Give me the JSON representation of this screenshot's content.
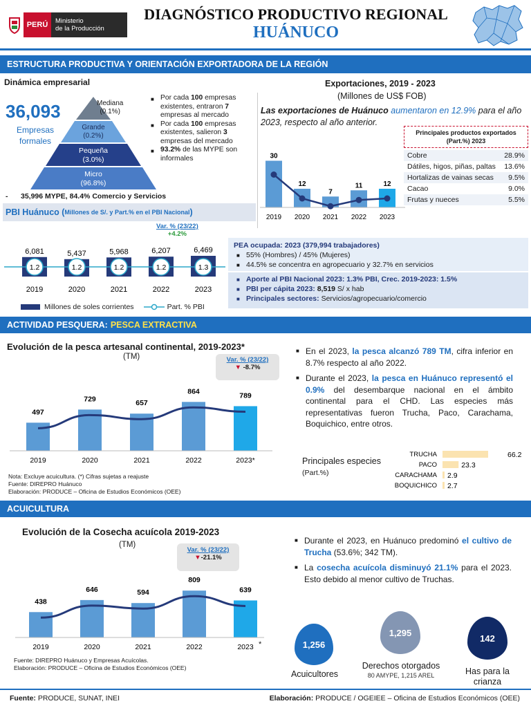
{
  "header": {
    "logo_country": "PERÚ",
    "logo_ministry_line1": "Ministerio",
    "logo_ministry_line2": "de la Producción",
    "title": "DIAGNÓSTICO PRODUCTIVO REGIONAL",
    "region": "HUÁNUCO"
  },
  "section1": {
    "band": "ESTRUCTURA PRODUCTIVA Y ORIENTACIÓN EXPORTADORA DE LA REGIÓN",
    "empresarial": {
      "heading": "Dinámica empresarial",
      "total": "36,093",
      "total_label_1": "Empresas",
      "total_label_2": "formales",
      "pyramid": [
        {
          "name": "Mediana",
          "pct": "(0.1%)"
        },
        {
          "name": "Grande",
          "pct": "(0.2%)"
        },
        {
          "name": "Pequeña",
          "pct": "(3.0%)"
        },
        {
          "name": "Micro",
          "pct": "(96.8%)"
        }
      ],
      "bullet1": {
        "a": "Por cada ",
        "b": "100",
        "c": " empresas existentes, entraron ",
        "d": "7",
        "e": " empresas al mercado"
      },
      "bullet2": {
        "a": "Por cada ",
        "b": "100",
        "c": " empresas existentes, salieron ",
        "d": "3",
        "e": " empresas del mercado"
      },
      "bullet3": {
        "a": "93.2%",
        "b": " de las MYPE son informales"
      },
      "mype_note": "35,996 MYPE, 84.4% Comercio y Servicios",
      "mype_dash": "-"
    },
    "exports": {
      "title": "Exportaciones, 2019 - 2023",
      "subtitle": "(Millones de US$ FOB)",
      "text_a": "Las exportaciones de Huánuco ",
      "text_b": "aumentaron en 12.9%",
      "text_c": " para el año 2023, respecto al año anterior.",
      "table_title": "Principales productos exportados (Part.%) 2023",
      "products": [
        {
          "name": "Cobre",
          "value": "28.9%"
        },
        {
          "name": "Dátiles, higos, piñas, paltas",
          "value": "13.6%"
        },
        {
          "name": "Hortalizas de vainas secas",
          "value": "9.5%"
        },
        {
          "name": "Cacao",
          "value": "9.0%"
        },
        {
          "name": "Frutas y nueces",
          "value": "5.5%"
        }
      ]
    },
    "pbi": {
      "title_a": "PBI Huánuco (",
      "title_b": "Millones  de S/. y Part.% en el PBI Nacional",
      "title_c": ")",
      "var_label": "Var. % (23/22)",
      "var_value": "+4.2%",
      "legend_bar": "Millones de soles corrientes",
      "legend_line": "Part. % PBI"
    },
    "pea": {
      "heading": "PEA ocupada: 2023 (379,994 trabajadores)",
      "b1": "55% (Hombres) / 45% (Mujeres)",
      "b2": "44.5% se concentra en agropecuario y 32.7% en servicios",
      "b3": "Aporte al PBI Nacional 2023: 1.3% PBI, Crec. 2019-2023: 1.5%",
      "b4a": "PBI per cápita 2023: ",
      "b4b": "8,519",
      "b4c": " S/ x hab",
      "b5a": "Principales sectores: ",
      "b5b": "Servicios/agropecuario/comercio"
    }
  },
  "section2": {
    "band_a": "ACTIVIDAD PESQUERA: ",
    "band_b": "PESCA EXTRACTIVA",
    "chart_title": "Evolución de la pesca artesanal continental, 2019-2023*",
    "chart_unit": "(TM)",
    "var_label": "Var. % (23/22)",
    "var_value": "-8.7%",
    "b1a": "En el 2023, ",
    "b1b": "la pesca alcanzó 789 TM",
    "b1c": ", cifra inferior en 8.7% respecto al año 2022.",
    "b2a": "Durante el 2023, ",
    "b2b": "la pesca en Huánuco representó el 0.9%",
    "b2c": " del desembarque nacional en el ámbito continental para el CHD. Las especies más representativas fueron Trucha, Paco, Carachama, Boquichico, entre otros.",
    "species_title": "Principales especies",
    "species_unit": "(Part.%)",
    "notes": [
      "Nota: Excluye acuicultura. (*) Cifras sujetas a reajuste",
      "Fuente: DIREPRO Huánuco",
      "Elaboración: PRODUCE – Oficina de Estudios Económicos (OEE)"
    ]
  },
  "section3": {
    "band": "ACUICULTURA",
    "chart_title": "Evolución de la Cosecha acuícola 2019-2023",
    "chart_unit": "(TM)",
    "var_label": "Var. % (23/22)",
    "var_value": "-21.1%",
    "star": "*",
    "b1a": "Durante el 2023, en Huánuco predominó ",
    "b1b": "el cultivo de Trucha",
    "b1c": " (53.6%; 342 TM).",
    "b2a": "La ",
    "b2b": "cosecha acuícola disminuyó 21.1%",
    "b2c": " para el 2023. Esto debido al menor cultivo de Truchas.",
    "notes": [
      "Fuente: DIREPRO Huánuco y Empresas Acuícolas.",
      "Elaboración: PRODUCE – Oficina de Estudios Económicos (OEE)"
    ],
    "kpis": [
      {
        "value": "1,256",
        "label": "Acuicultores",
        "sub": ""
      },
      {
        "value": "1,295",
        "label": "Derechos otorgados",
        "sub": "80 AMYPE, 1,215 AREL"
      },
      {
        "value": "142",
        "label": "Has para la crianza",
        "sub": ""
      }
    ]
  },
  "footer": {
    "fuente_label": "Fuente:",
    "fuente": " PRODUCE, SUNAT, INEI",
    "elab_label": "Elaboración:",
    "elab": " PRODUCE / OGEIEE – Oficina de Estudios Económicos (OEE)"
  },
  "colors": {
    "primary": "#1f6fbf",
    "navy": "#253a7a",
    "bar": "#5b9bd5",
    "light": "#e6eef8"
  },
  "chart_data": [
    {
      "type": "bar",
      "title": "Exportaciones, 2019 - 2023",
      "ylabel": "Millones de US$ FOB",
      "categories": [
        "2019",
        "2020",
        "2021",
        "2022",
        "2023"
      ],
      "values": [
        30,
        12,
        7,
        11,
        12
      ],
      "ylim": [
        0,
        32
      ]
    },
    {
      "type": "bar",
      "title": "PBI Huánuco",
      "categories": [
        "2019",
        "2020",
        "2021",
        "2022",
        "2023"
      ],
      "series": [
        {
          "name": "Millones de soles corrientes",
          "values": [
            6081,
            5437,
            5968,
            6207,
            6469
          ],
          "labels": [
            "6,081",
            "5,437",
            "5,968",
            "6,207",
            "6,469"
          ]
        },
        {
          "name": "Part. % PBI",
          "values": [
            1.2,
            1.2,
            1.2,
            1.2,
            1.3
          ],
          "labels": [
            "1.2",
            "1.2",
            "1.2",
            "1.2",
            "1.3"
          ]
        }
      ],
      "ylim": [
        0,
        6469
      ]
    },
    {
      "type": "bar",
      "title": "Evolución de la pesca artesanal continental, 2019-2023*",
      "ylabel": "TM",
      "categories": [
        "2019",
        "2020",
        "2021",
        "2022",
        "2023*"
      ],
      "values": [
        497,
        729,
        657,
        864,
        789
      ],
      "labels": [
        "497",
        "729",
        "657",
        "864",
        "789"
      ],
      "ylim": [
        0,
        1100
      ]
    },
    {
      "type": "bar",
      "title": "Principales especies",
      "categories": [
        "TRUCHA",
        "PACO",
        "CARACHAMA",
        "BOQUICHICO"
      ],
      "values": [
        66.2,
        23.3,
        2.9,
        2.7
      ],
      "labels": [
        "66.2",
        "23.3",
        "2.9",
        "2.7"
      ]
    },
    {
      "type": "bar",
      "title": "Evolución de la Cosecha acuícola 2019-2023",
      "ylabel": "TM",
      "categories": [
        "2019",
        "2020",
        "2021",
        "2022",
        "2023"
      ],
      "values": [
        438,
        646,
        594,
        809,
        639
      ],
      "labels": [
        "438",
        "646",
        "594",
        "809",
        "639"
      ],
      "ylim": [
        0,
        1050
      ]
    }
  ]
}
